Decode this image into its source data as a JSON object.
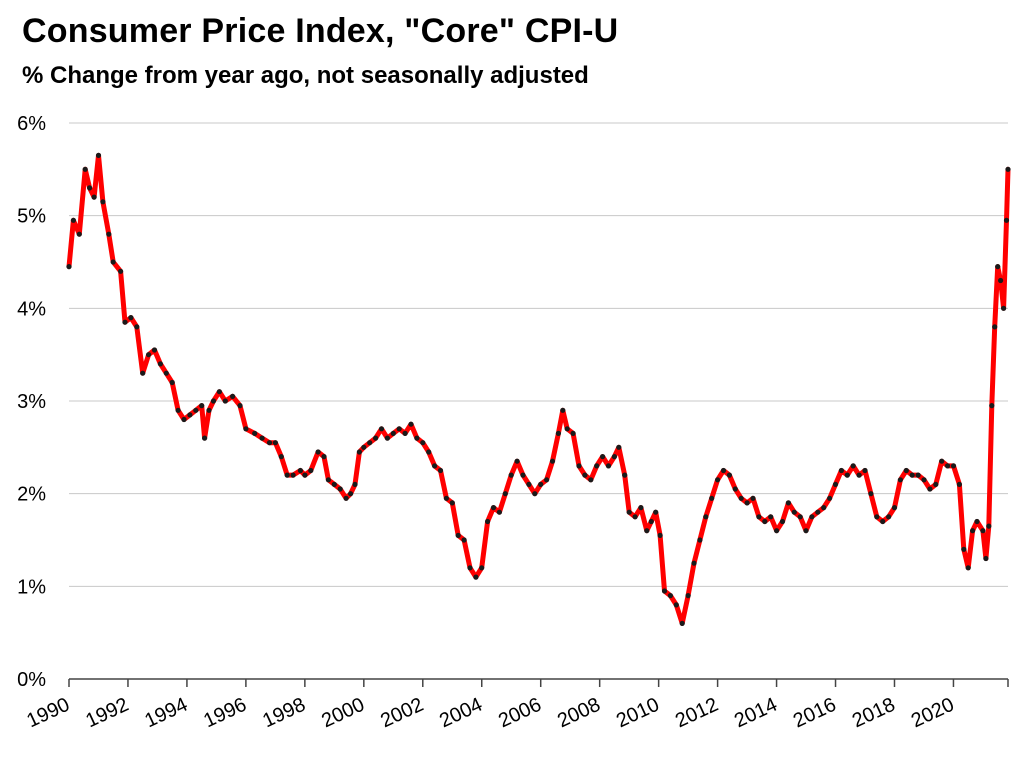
{
  "chart_data": {
    "type": "line",
    "title": "Consumer  Price Index, \"Core\"  CPI-U",
    "subtitle": "% Change from year ago, not seasonally adjusted",
    "xlabel": "",
    "ylabel": "",
    "xlim": [
      1990,
      2021.85
    ],
    "ylim": [
      0,
      6
    ],
    "y_ticks": [
      "0%",
      "1%",
      "2%",
      "3%",
      "4%",
      "5%",
      "6%"
    ],
    "x_ticks": [
      "1990",
      "1992",
      "1994",
      "1996",
      "1998",
      "2000",
      "2002",
      "2004",
      "2006",
      "2008",
      "2010",
      "2012",
      "2014",
      "2016",
      "2018",
      "2020"
    ],
    "grid": true,
    "line_color": "#ff0000",
    "marker_color": "#1a1a1a",
    "series": [
      {
        "name": "Core CPI-U % change from year ago",
        "points": [
          [
            1990.0,
            4.45
          ],
          [
            1990.15,
            4.95
          ],
          [
            1990.35,
            4.8
          ],
          [
            1990.55,
            5.5
          ],
          [
            1990.7,
            5.3
          ],
          [
            1990.85,
            5.2
          ],
          [
            1991.0,
            5.65
          ],
          [
            1991.15,
            5.15
          ],
          [
            1991.35,
            4.8
          ],
          [
            1991.5,
            4.5
          ],
          [
            1991.75,
            4.4
          ],
          [
            1991.9,
            3.85
          ],
          [
            1992.1,
            3.9
          ],
          [
            1992.3,
            3.8
          ],
          [
            1992.5,
            3.3
          ],
          [
            1992.7,
            3.5
          ],
          [
            1992.9,
            3.55
          ],
          [
            1993.1,
            3.4
          ],
          [
            1993.3,
            3.3
          ],
          [
            1993.5,
            3.2
          ],
          [
            1993.7,
            2.9
          ],
          [
            1993.9,
            2.8
          ],
          [
            1994.1,
            2.85
          ],
          [
            1994.3,
            2.9
          ],
          [
            1994.5,
            2.95
          ],
          [
            1994.6,
            2.6
          ],
          [
            1994.75,
            2.9
          ],
          [
            1994.9,
            3.0
          ],
          [
            1995.1,
            3.1
          ],
          [
            1995.3,
            3.0
          ],
          [
            1995.55,
            3.05
          ],
          [
            1995.8,
            2.95
          ],
          [
            1996.0,
            2.7
          ],
          [
            1996.3,
            2.65
          ],
          [
            1996.55,
            2.6
          ],
          [
            1996.8,
            2.55
          ],
          [
            1997.0,
            2.55
          ],
          [
            1997.2,
            2.4
          ],
          [
            1997.4,
            2.2
          ],
          [
            1997.6,
            2.2
          ],
          [
            1997.85,
            2.25
          ],
          [
            1998.0,
            2.2
          ],
          [
            1998.2,
            2.25
          ],
          [
            1998.45,
            2.45
          ],
          [
            1998.65,
            2.4
          ],
          [
            1998.8,
            2.15
          ],
          [
            1999.0,
            2.1
          ],
          [
            1999.2,
            2.05
          ],
          [
            1999.4,
            1.95
          ],
          [
            1999.55,
            2.0
          ],
          [
            1999.7,
            2.1
          ],
          [
            1999.85,
            2.45
          ],
          [
            2000.0,
            2.5
          ],
          [
            2000.2,
            2.55
          ],
          [
            2000.4,
            2.6
          ],
          [
            2000.6,
            2.7
          ],
          [
            2000.8,
            2.6
          ],
          [
            2001.0,
            2.65
          ],
          [
            2001.2,
            2.7
          ],
          [
            2001.4,
            2.65
          ],
          [
            2001.6,
            2.75
          ],
          [
            2001.8,
            2.6
          ],
          [
            2002.0,
            2.55
          ],
          [
            2002.2,
            2.45
          ],
          [
            2002.4,
            2.3
          ],
          [
            2002.6,
            2.25
          ],
          [
            2002.8,
            1.95
          ],
          [
            2003.0,
            1.9
          ],
          [
            2003.2,
            1.55
          ],
          [
            2003.4,
            1.5
          ],
          [
            2003.6,
            1.2
          ],
          [
            2003.8,
            1.1
          ],
          [
            2004.0,
            1.2
          ],
          [
            2004.2,
            1.7
          ],
          [
            2004.4,
            1.85
          ],
          [
            2004.6,
            1.8
          ],
          [
            2004.8,
            2.0
          ],
          [
            2005.0,
            2.2
          ],
          [
            2005.2,
            2.35
          ],
          [
            2005.4,
            2.2
          ],
          [
            2005.6,
            2.1
          ],
          [
            2005.8,
            2.0
          ],
          [
            2006.0,
            2.1
          ],
          [
            2006.2,
            2.15
          ],
          [
            2006.4,
            2.35
          ],
          [
            2006.6,
            2.65
          ],
          [
            2006.75,
            2.9
          ],
          [
            2006.9,
            2.7
          ],
          [
            2007.1,
            2.65
          ],
          [
            2007.3,
            2.3
          ],
          [
            2007.5,
            2.2
          ],
          [
            2007.7,
            2.15
          ],
          [
            2007.9,
            2.3
          ],
          [
            2008.1,
            2.4
          ],
          [
            2008.3,
            2.3
          ],
          [
            2008.5,
            2.4
          ],
          [
            2008.65,
            2.5
          ],
          [
            2008.85,
            2.2
          ],
          [
            2009.0,
            1.8
          ],
          [
            2009.2,
            1.75
          ],
          [
            2009.4,
            1.85
          ],
          [
            2009.6,
            1.6
          ],
          [
            2009.75,
            1.7
          ],
          [
            2009.9,
            1.8
          ],
          [
            2010.05,
            1.55
          ],
          [
            2010.2,
            0.95
          ],
          [
            2010.4,
            0.9
          ],
          [
            2010.6,
            0.8
          ],
          [
            2010.8,
            0.6
          ],
          [
            2011.0,
            0.9
          ],
          [
            2011.2,
            1.25
          ],
          [
            2011.4,
            1.5
          ],
          [
            2011.6,
            1.75
          ],
          [
            2011.8,
            1.95
          ],
          [
            2012.0,
            2.15
          ],
          [
            2012.2,
            2.25
          ],
          [
            2012.4,
            2.2
          ],
          [
            2012.6,
            2.05
          ],
          [
            2012.8,
            1.95
          ],
          [
            2013.0,
            1.9
          ],
          [
            2013.2,
            1.95
          ],
          [
            2013.4,
            1.75
          ],
          [
            2013.6,
            1.7
          ],
          [
            2013.8,
            1.75
          ],
          [
            2014.0,
            1.6
          ],
          [
            2014.2,
            1.7
          ],
          [
            2014.4,
            1.9
          ],
          [
            2014.6,
            1.8
          ],
          [
            2014.8,
            1.75
          ],
          [
            2015.0,
            1.6
          ],
          [
            2015.2,
            1.75
          ],
          [
            2015.4,
            1.8
          ],
          [
            2015.6,
            1.85
          ],
          [
            2015.8,
            1.95
          ],
          [
            2016.0,
            2.1
          ],
          [
            2016.2,
            2.25
          ],
          [
            2016.4,
            2.2
          ],
          [
            2016.6,
            2.3
          ],
          [
            2016.8,
            2.2
          ],
          [
            2017.0,
            2.25
          ],
          [
            2017.2,
            2.0
          ],
          [
            2017.4,
            1.75
          ],
          [
            2017.6,
            1.7
          ],
          [
            2017.8,
            1.75
          ],
          [
            2018.0,
            1.85
          ],
          [
            2018.2,
            2.15
          ],
          [
            2018.4,
            2.25
          ],
          [
            2018.6,
            2.2
          ],
          [
            2018.8,
            2.2
          ],
          [
            2019.0,
            2.15
          ],
          [
            2019.2,
            2.05
          ],
          [
            2019.4,
            2.1
          ],
          [
            2019.6,
            2.35
          ],
          [
            2019.8,
            2.3
          ],
          [
            2020.0,
            2.3
          ],
          [
            2020.2,
            2.1
          ],
          [
            2020.35,
            1.4
          ],
          [
            2020.5,
            1.2
          ],
          [
            2020.65,
            1.6
          ],
          [
            2020.8,
            1.7
          ],
          [
            2021.0,
            1.6
          ],
          [
            2021.1,
            1.3
          ],
          [
            2021.2,
            1.65
          ],
          [
            2021.3,
            2.95
          ],
          [
            2021.4,
            3.8
          ],
          [
            2021.5,
            4.45
          ],
          [
            2021.6,
            4.3
          ],
          [
            2021.7,
            4.0
          ],
          [
            2021.8,
            4.95
          ],
          [
            2021.85,
            5.5
          ]
        ]
      }
    ]
  }
}
